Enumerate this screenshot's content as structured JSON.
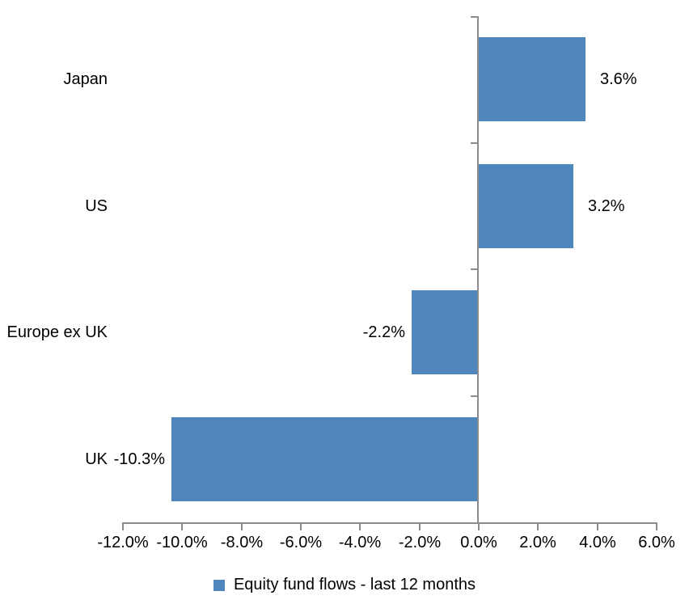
{
  "chart_data": {
    "type": "bar",
    "orientation": "horizontal",
    "categories": [
      "Japan",
      "US",
      "Europe ex UK",
      "UK"
    ],
    "series": [
      {
        "name": "Equity fund flows - last 12 months",
        "values": [
          3.6,
          3.2,
          -2.2,
          -10.3
        ],
        "labels": [
          "3.6%",
          "3.2%",
          "-2.2%",
          "-10.3%"
        ],
        "color": "#4e86bd"
      }
    ],
    "title": "",
    "xlabel": "",
    "ylabel": "",
    "xlim": [
      -12,
      6
    ],
    "x_ticks": [
      {
        "value": -12,
        "label": "-12.0%"
      },
      {
        "value": -10,
        "label": "-10.0%"
      },
      {
        "value": -8,
        "label": "-8.0%"
      },
      {
        "value": -6,
        "label": "-6.0%"
      },
      {
        "value": -4,
        "label": "-4.0%"
      },
      {
        "value": -2,
        "label": "-2.0%"
      },
      {
        "value": 0,
        "label": "0.0%"
      },
      {
        "value": 2,
        "label": "2.0%"
      },
      {
        "value": 4,
        "label": "4.0%"
      },
      {
        "value": 6,
        "label": "6.0%"
      }
    ],
    "grid": false,
    "legend": {
      "position": "bottom",
      "entries": [
        {
          "label": "Equity fund flows - last 12 months",
          "color": "#4e86bd"
        }
      ]
    },
    "axis_color": "#8c8c8c",
    "text_color": "#000000",
    "background": "#ffffff"
  }
}
